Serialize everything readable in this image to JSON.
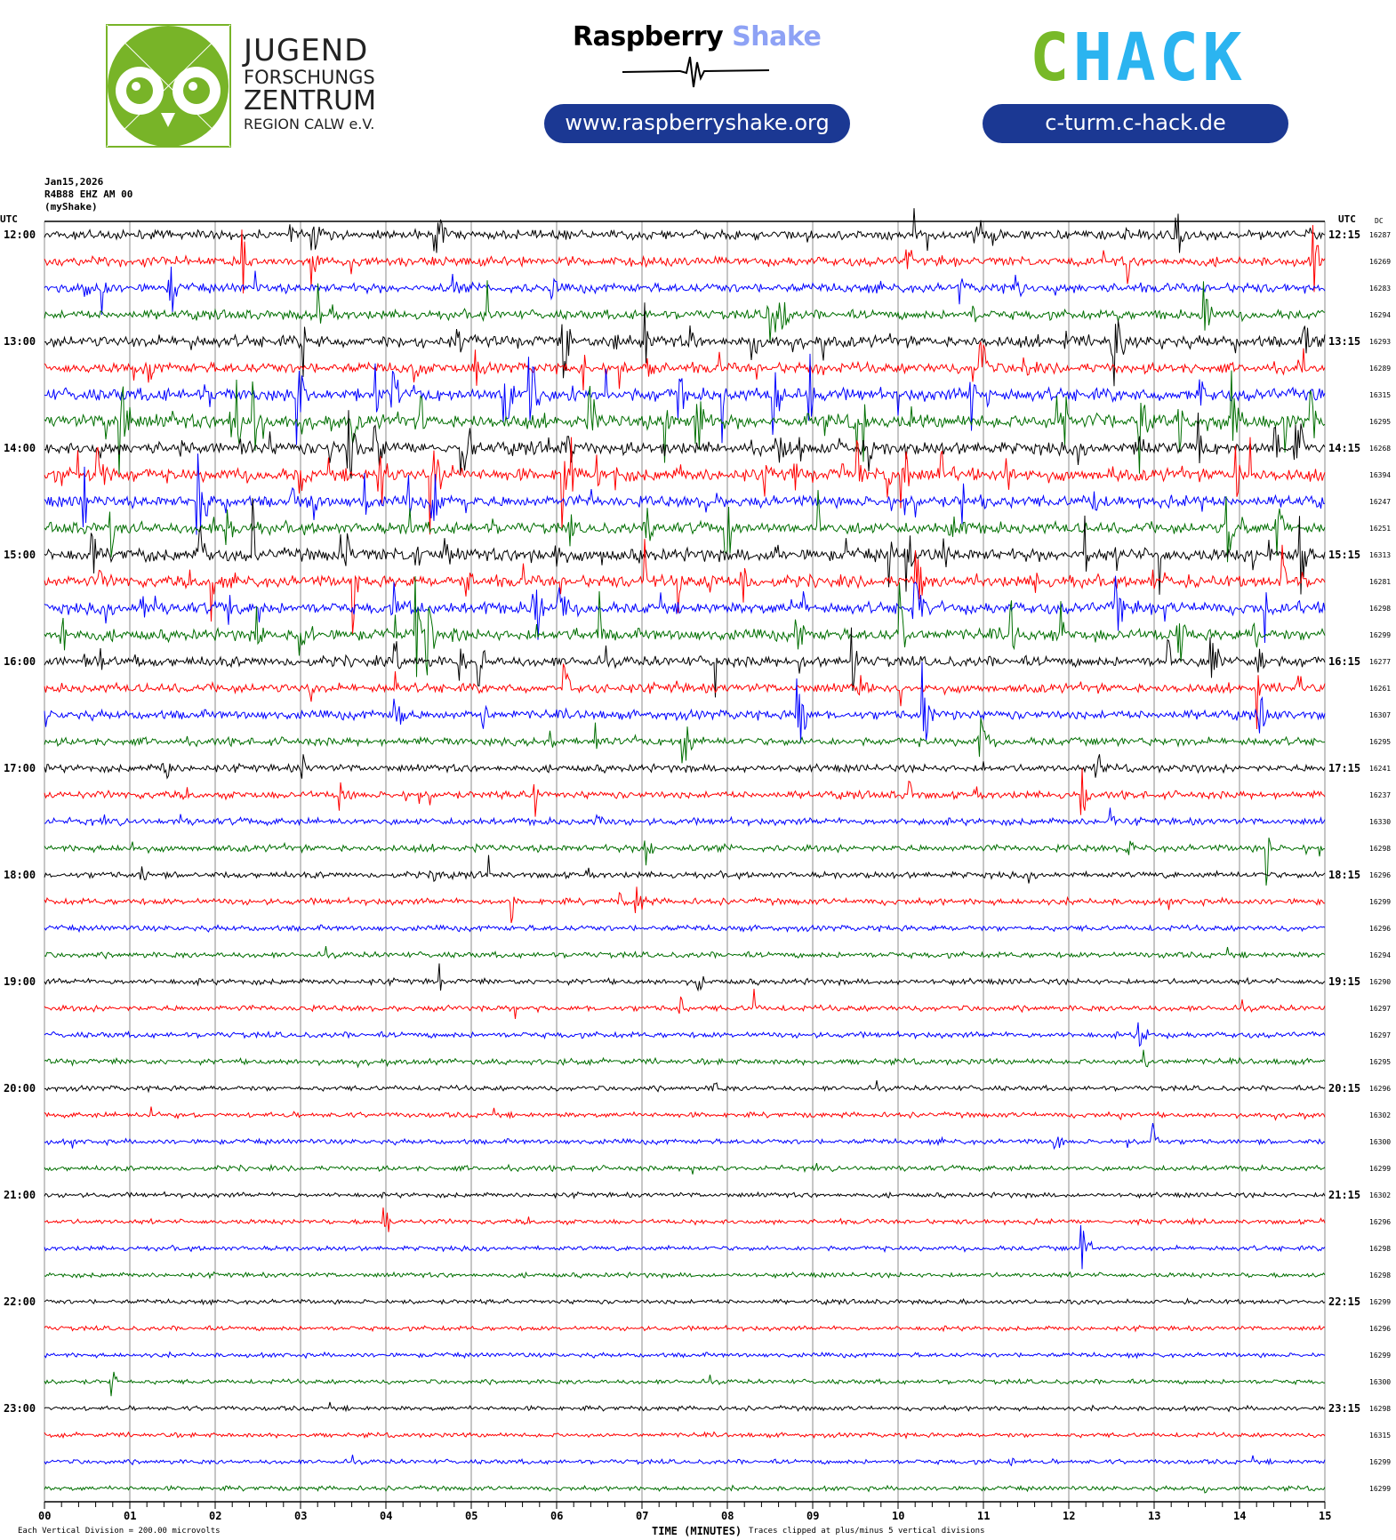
{
  "header": {
    "jfz_logo": {
      "lines": [
        "JUGEND",
        "FORSCHUNGS",
        "ZENTRUM",
        "REGION CALW e.V."
      ]
    },
    "raspberry_shake": {
      "word1": "Raspberry",
      "word2": "Shake",
      "url": "www.raspberryshake.org"
    },
    "chack": {
      "logo_text_c": "C",
      "logo_text_rest": "HACK",
      "url": "c-turm.c-hack.de"
    }
  },
  "meta": {
    "date": "Jan15,2026",
    "station": "R4B88 EHZ AM 00",
    "network": "(myShake)"
  },
  "left_axis_title": "UTC",
  "right_axis_title": "UTC",
  "dc_title": "DC",
  "footer": {
    "scale": "Each Vertical Division =  200.00 microvolts",
    "xlabel": "TIME (MINUTES)",
    "clip_note": "Traces clipped at plus/minus 5 vertical divisions"
  },
  "colors": {
    "trace": [
      "#000000",
      "#ff0000",
      "#0000ff",
      "#006e00"
    ],
    "grid": "#8c8c8c"
  },
  "chart_data": {
    "type": "line",
    "title": "Helicorder R4B88 EHZ AM 00 Jan15,2026",
    "xlabel": "TIME (MINUTES)",
    "xlim": [
      0,
      15
    ],
    "x_ticks": [
      "00",
      "01",
      "02",
      "03",
      "04",
      "05",
      "06",
      "07",
      "08",
      "09",
      "10",
      "11",
      "12",
      "13",
      "14",
      "15"
    ],
    "minutes_per_line": 15,
    "left_hour_labels": [
      "12:00",
      "13:00",
      "14:00",
      "15:00",
      "16:00",
      "17:00",
      "18:00",
      "19:00",
      "20:00",
      "21:00",
      "22:00",
      "23:00"
    ],
    "right_hour_labels": [
      "12:15",
      "13:15",
      "14:15",
      "15:15",
      "16:15",
      "17:15",
      "18:15",
      "19:15",
      "20:15",
      "21:15",
      "22:15",
      "23:15"
    ],
    "dc_values": [
      16287,
      16269,
      16283,
      16294,
      16293,
      16289,
      16315,
      16295,
      16268,
      16394,
      16247,
      16251,
      16313,
      16281,
      16298,
      16299,
      16277,
      16261,
      16307,
      16295,
      16241,
      16237,
      16330,
      16298,
      16296,
      16299,
      16296,
      16294,
      16290,
      16297,
      16297,
      16295,
      16296,
      16302,
      16300,
      16299,
      16302,
      16296,
      16298,
      16298,
      16299,
      16296,
      16299,
      16300,
      16298,
      16315,
      16299,
      16299
    ],
    "activity_level": [
      0.5,
      0.5,
      0.5,
      0.5,
      0.7,
      0.6,
      0.8,
      0.9,
      0.8,
      0.8,
      0.7,
      0.7,
      0.8,
      0.7,
      0.7,
      0.7,
      0.6,
      0.5,
      0.5,
      0.4,
      0.35,
      0.35,
      0.3,
      0.3,
      0.25,
      0.25,
      0.2,
      0.2,
      0.2,
      0.2,
      0.2,
      0.2,
      0.15,
      0.15,
      0.15,
      0.15,
      0.12,
      0.12,
      0.12,
      0.12,
      0.1,
      0.1,
      0.1,
      0.1,
      0.1,
      0.1,
      0.1,
      0.1
    ],
    "vertical_division_microvolts": 200.0,
    "clip_divisions": 5
  }
}
